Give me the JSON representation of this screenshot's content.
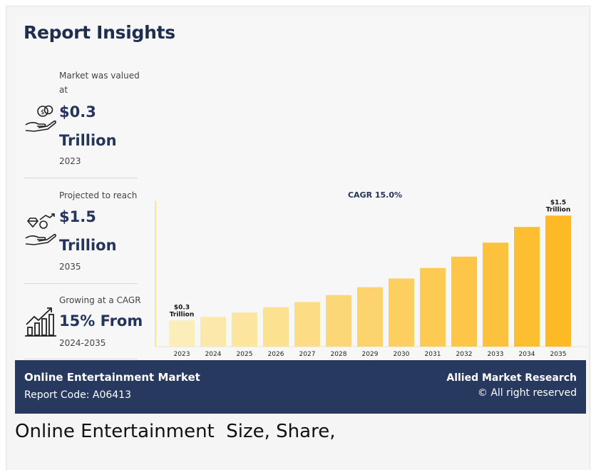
{
  "title": "Report Insights",
  "stats": [
    {
      "label": "Market was valued at",
      "value": "$0.3 Trillion",
      "year": "2023",
      "icon": "money-hand-icon"
    },
    {
      "label": "Projected to reach",
      "value": "$1.5 Trillion",
      "year": "2035",
      "icon": "diamond-growth-hand-icon"
    },
    {
      "label": "Growing at a CAGR",
      "value": "15% From",
      "year": "2024-2035",
      "icon": "growth-bar-chart-icon"
    }
  ],
  "chart_data": {
    "type": "bar",
    "title": "CAGR 15.0%",
    "categories": [
      "2023",
      "2024",
      "2025",
      "2026",
      "2027",
      "2028",
      "2029",
      "2030",
      "2031",
      "2032",
      "2033",
      "2034",
      "2035"
    ],
    "values": [
      0.3,
      0.34,
      0.39,
      0.45,
      0.51,
      0.59,
      0.68,
      0.78,
      0.9,
      1.03,
      1.19,
      1.37,
      1.5
    ],
    "data_labels": {
      "first": "$0.3 Trillion",
      "last": "$1.5 Trillion"
    },
    "ylim": [
      0,
      1.6
    ],
    "bar_colors": [
      "#fbeeb9",
      "#fbe9ab",
      "#fce59d",
      "#fce191",
      "#fcdc84",
      "#fcd778",
      "#fcd36c",
      "#fdcf60",
      "#fdca54",
      "#fdc648",
      "#fdc23d",
      "#fdbe31",
      "#fdba26"
    ]
  },
  "footer": {
    "market": "Online Entertainment Market",
    "code": "Report Code: A06413",
    "brand": "Allied Market Research",
    "rights": "© All right reserved"
  },
  "caption": "Online Entertainment  Size, Share,"
}
